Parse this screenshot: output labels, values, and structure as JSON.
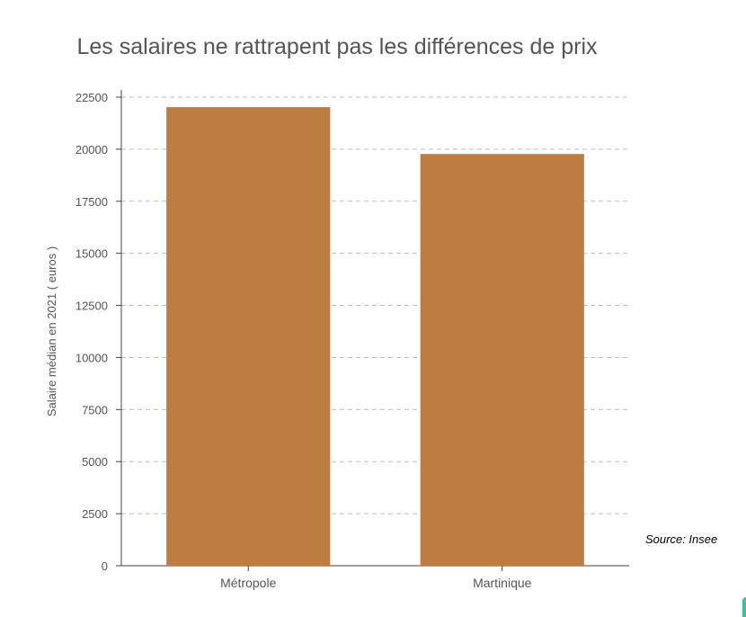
{
  "chart_data": {
    "type": "bar",
    "title": "Les salaires ne rattrapent pas les différences de prix",
    "xlabel": "",
    "ylabel": "Salaire médian en 2021 ( euros )",
    "categories": [
      "Métropole",
      "Martinique"
    ],
    "values": [
      22020,
      19770
    ],
    "ylim": [
      0,
      22500
    ],
    "yticks": [
      "0",
      "2500",
      "5000",
      "7500",
      "10000",
      "12500",
      "15000",
      "17500",
      "20000",
      "22500"
    ],
    "grid": true,
    "bar_color": "#bd7c40",
    "grid_color": "#bdbdbd"
  },
  "source": "Source: Insee",
  "colors": {
    "bar": "#bd7c40",
    "text": "#555555",
    "accent_corner": "#3fbf9f"
  }
}
